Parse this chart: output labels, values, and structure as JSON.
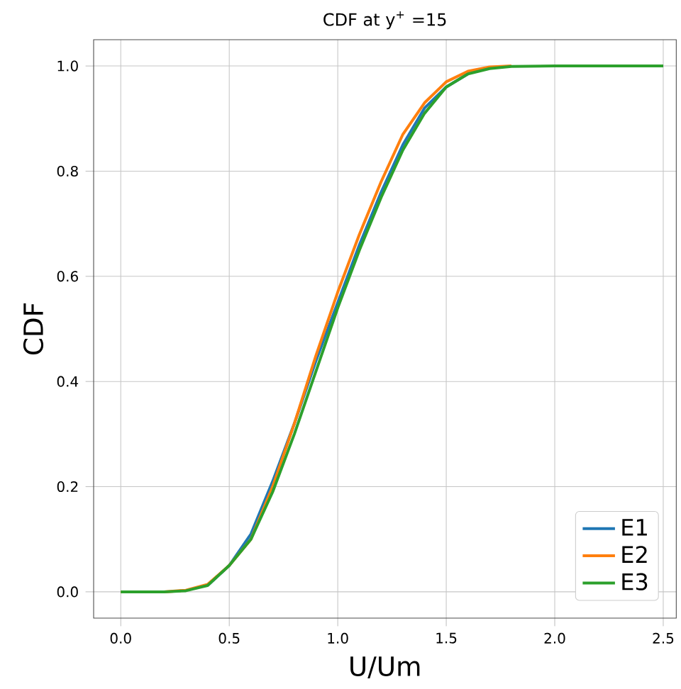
{
  "chart_data": {
    "type": "line",
    "title": "CDF at y$^{+}$ =15",
    "xlabel": "U/Um",
    "ylabel": "CDF",
    "x": [
      0,
      0.2,
      0.3,
      0.4,
      0.5,
      0.6,
      0.7,
      0.8,
      0.9,
      1.0,
      1.1,
      1.2,
      1.3,
      1.4,
      1.5,
      1.6,
      1.7,
      1.8,
      2.0,
      2.5
    ],
    "series": [
      {
        "name": "E1",
        "color": "#1f77b4",
        "values": [
          null,
          null,
          null,
          0.012,
          0.05,
          0.11,
          0.21,
          0.32,
          0.44,
          0.55,
          0.66,
          0.76,
          0.85,
          0.92,
          0.96,
          0.985,
          null,
          null,
          null,
          null
        ]
      },
      {
        "name": "E2",
        "color": "#ff7f0e",
        "values": [
          0,
          0,
          0.003,
          0.014,
          0.05,
          0.1,
          0.2,
          0.32,
          0.45,
          0.57,
          0.68,
          0.78,
          0.87,
          0.93,
          0.97,
          0.99,
          0.998,
          1,
          null,
          null
        ]
      },
      {
        "name": "E3",
        "color": "#2ca02c",
        "values": [
          0,
          0,
          0.002,
          0.012,
          0.05,
          0.1,
          0.19,
          0.3,
          0.42,
          0.54,
          0.65,
          0.75,
          0.84,
          0.91,
          0.96,
          0.985,
          0.995,
          0.999,
          1,
          1
        ]
      }
    ],
    "xlim": [
      -0.125,
      2.56
    ],
    "ylim": [
      -0.05,
      1.05
    ],
    "xticks": [
      {
        "value": 0,
        "label": "0.0"
      },
      {
        "value": 0.5,
        "label": "0.5"
      },
      {
        "value": 1,
        "label": "1.0"
      },
      {
        "value": 1.5,
        "label": "1.5"
      },
      {
        "value": 2,
        "label": "2.0"
      },
      {
        "value": 2.5,
        "label": "2.5"
      }
    ],
    "yticks": [
      {
        "value": 0,
        "label": "0.0"
      },
      {
        "value": 0.2,
        "label": "0.2"
      },
      {
        "value": 0.4,
        "label": "0.4"
      },
      {
        "value": 0.6,
        "label": "0.6"
      },
      {
        "value": 0.8,
        "label": "0.8"
      },
      {
        "value": 1,
        "label": "1.0"
      }
    ],
    "grid": true,
    "legend": "bottom right",
    "marker": "none",
    "line_style": "solid"
  }
}
